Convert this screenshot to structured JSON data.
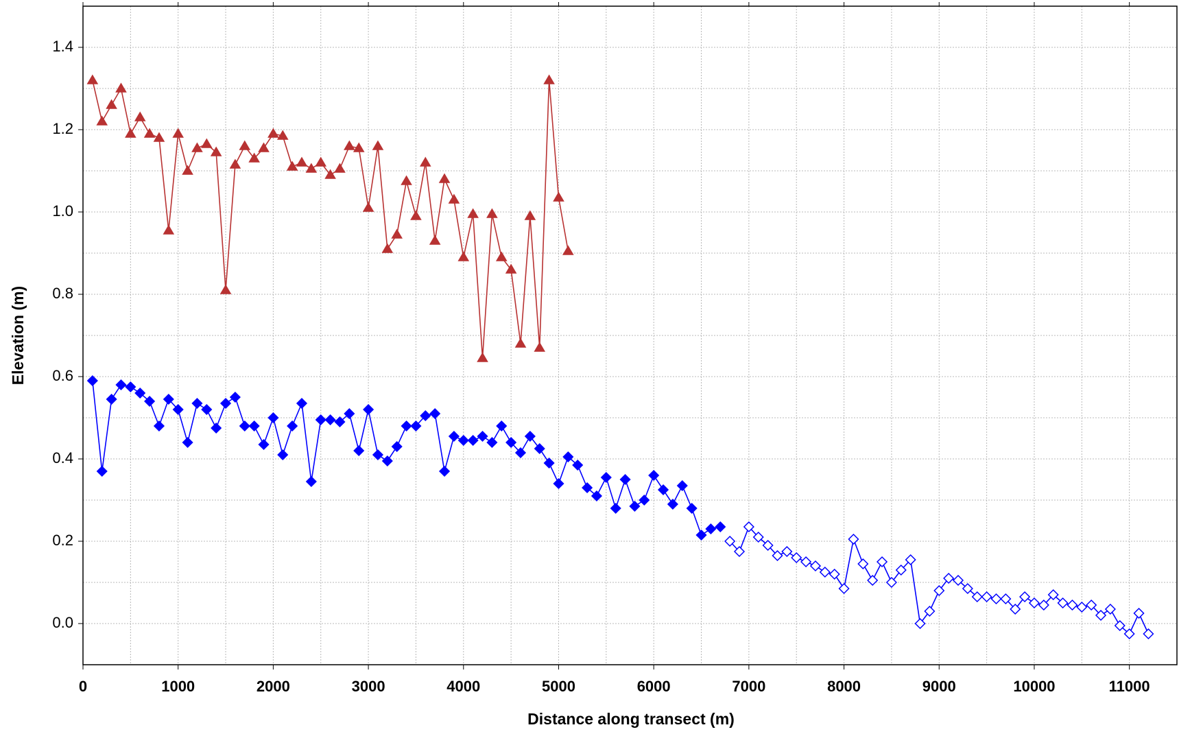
{
  "chart_data": {
    "type": "line",
    "x_label": "Distance along transect (m)",
    "y_label": "Elevation (m)",
    "xlim": [
      0,
      11500
    ],
    "ylim": [
      -0.1,
      1.5
    ],
    "xticks": [
      0,
      1000,
      2000,
      3000,
      4000,
      5000,
      6000,
      7000,
      8000,
      9000,
      10000,
      11000
    ],
    "yticks": [
      {
        "value": 0,
        "label": "0.0"
      },
      0.2,
      0.4,
      0.6,
      0.8,
      {
        "value": 1,
        "label": "1.0"
      },
      1.2,
      1.4
    ],
    "grid": true,
    "minor_grid": true,
    "series": [
      {
        "color": "#b83232",
        "marker": "triangle",
        "filled": true,
        "x": [
          100,
          200,
          300,
          400,
          500,
          600,
          700,
          800,
          900,
          1000,
          1100,
          1200,
          1300,
          1400,
          1500,
          1600,
          1700,
          1800,
          1900,
          2000,
          2100,
          2200,
          2300,
          2400,
          2500,
          2600,
          2700,
          2800,
          2900,
          3000,
          3100,
          3200,
          3300,
          3400,
          3500,
          3600,
          3700,
          3800,
          3900,
          4000,
          4100,
          4200,
          4300,
          4400,
          4500,
          4600,
          4700,
          4800,
          4900,
          5000,
          5100
        ],
        "values": [
          1.32,
          1.22,
          1.26,
          1.3,
          1.19,
          1.23,
          1.19,
          1.18,
          0.955,
          1.19,
          1.1,
          1.155,
          1.165,
          1.145,
          0.81,
          1.115,
          1.16,
          1.13,
          1.155,
          1.19,
          1.185,
          1.11,
          1.12,
          1.105,
          1.12,
          1.09,
          1.105,
          1.16,
          1.155,
          1.01,
          1.16,
          0.91,
          0.945,
          1.075,
          0.99,
          1.12,
          0.93,
          1.08,
          1.03,
          0.89,
          0.995,
          0.645,
          0.995,
          0.89,
          0.86,
          0.68,
          0.99,
          0.67,
          1.32,
          1.035,
          0.905
        ]
      },
      {
        "color": "#0000ff",
        "marker": "diamond",
        "filled": true,
        "x": [
          100,
          200,
          300,
          400,
          500,
          600,
          700,
          800,
          900,
          1000,
          1100,
          1200,
          1300,
          1400,
          1500,
          1600,
          1700,
          1800,
          1900,
          2000,
          2100,
          2200,
          2300,
          2400,
          2500,
          2600,
          2700,
          2800,
          2900,
          3000,
          3100,
          3200,
          3300,
          3400,
          3500,
          3600,
          3700,
          3800,
          3900,
          4000,
          4100,
          4200,
          4300,
          4400,
          4500,
          4600,
          4700,
          4800,
          4900,
          5000,
          5100,
          5200,
          5300,
          5400,
          5500,
          5600,
          5700,
          5800,
          5900,
          6000,
          6100,
          6200,
          6300,
          6400,
          6500,
          6600,
          6700
        ],
        "values": [
          0.59,
          0.37,
          0.545,
          0.58,
          0.575,
          0.56,
          0.54,
          0.48,
          0.545,
          0.52,
          0.44,
          0.535,
          0.52,
          0.475,
          0.535,
          0.55,
          0.48,
          0.48,
          0.435,
          0.5,
          0.41,
          0.48,
          0.535,
          0.345,
          0.495,
          0.495,
          0.49,
          0.51,
          0.42,
          0.52,
          0.41,
          0.395,
          0.43,
          0.48,
          0.48,
          0.505,
          0.51,
          0.37,
          0.455,
          0.445,
          0.445,
          0.455,
          0.44,
          0.48,
          0.44,
          0.415,
          0.455,
          0.425,
          0.39,
          0.34,
          0.405,
          0.385,
          0.33,
          0.31,
          0.355,
          0.28,
          0.35,
          0.285,
          0.3,
          0.36,
          0.325,
          0.29,
          0.335,
          0.28,
          0.215,
          0.23,
          0.235
        ]
      },
      {
        "color": "#0000ff",
        "marker": "diamond",
        "filled": false,
        "x": [
          6800,
          6900,
          7000,
          7100,
          7200,
          7300,
          7400,
          7500,
          7600,
          7700,
          7800,
          7900,
          8000,
          8100,
          8200,
          8300,
          8400,
          8500,
          8600,
          8700,
          8800,
          8900,
          9000,
          9100,
          9200,
          9300,
          9400,
          9500,
          9600,
          9700,
          9800,
          9900,
          10000,
          10100,
          10200,
          10300,
          10400,
          10500,
          10600,
          10700,
          10800,
          10900,
          11000,
          11100,
          11200
        ],
        "values": [
          0.2,
          0.175,
          0.235,
          0.21,
          0.19,
          0.165,
          0.175,
          0.16,
          0.15,
          0.14,
          0.125,
          0.12,
          0.085,
          0.205,
          0.145,
          0.105,
          0.15,
          0.1,
          0.13,
          0.155,
          0.0,
          0.03,
          0.08,
          0.11,
          0.105,
          0.085,
          0.065,
          0.065,
          0.06,
          0.06,
          0.035,
          0.065,
          0.05,
          0.045,
          0.07,
          0.05,
          0.045,
          0.04,
          0.045,
          0.02,
          0.035,
          -0.005,
          -0.025,
          0.025,
          -0.025
        ]
      }
    ]
  }
}
